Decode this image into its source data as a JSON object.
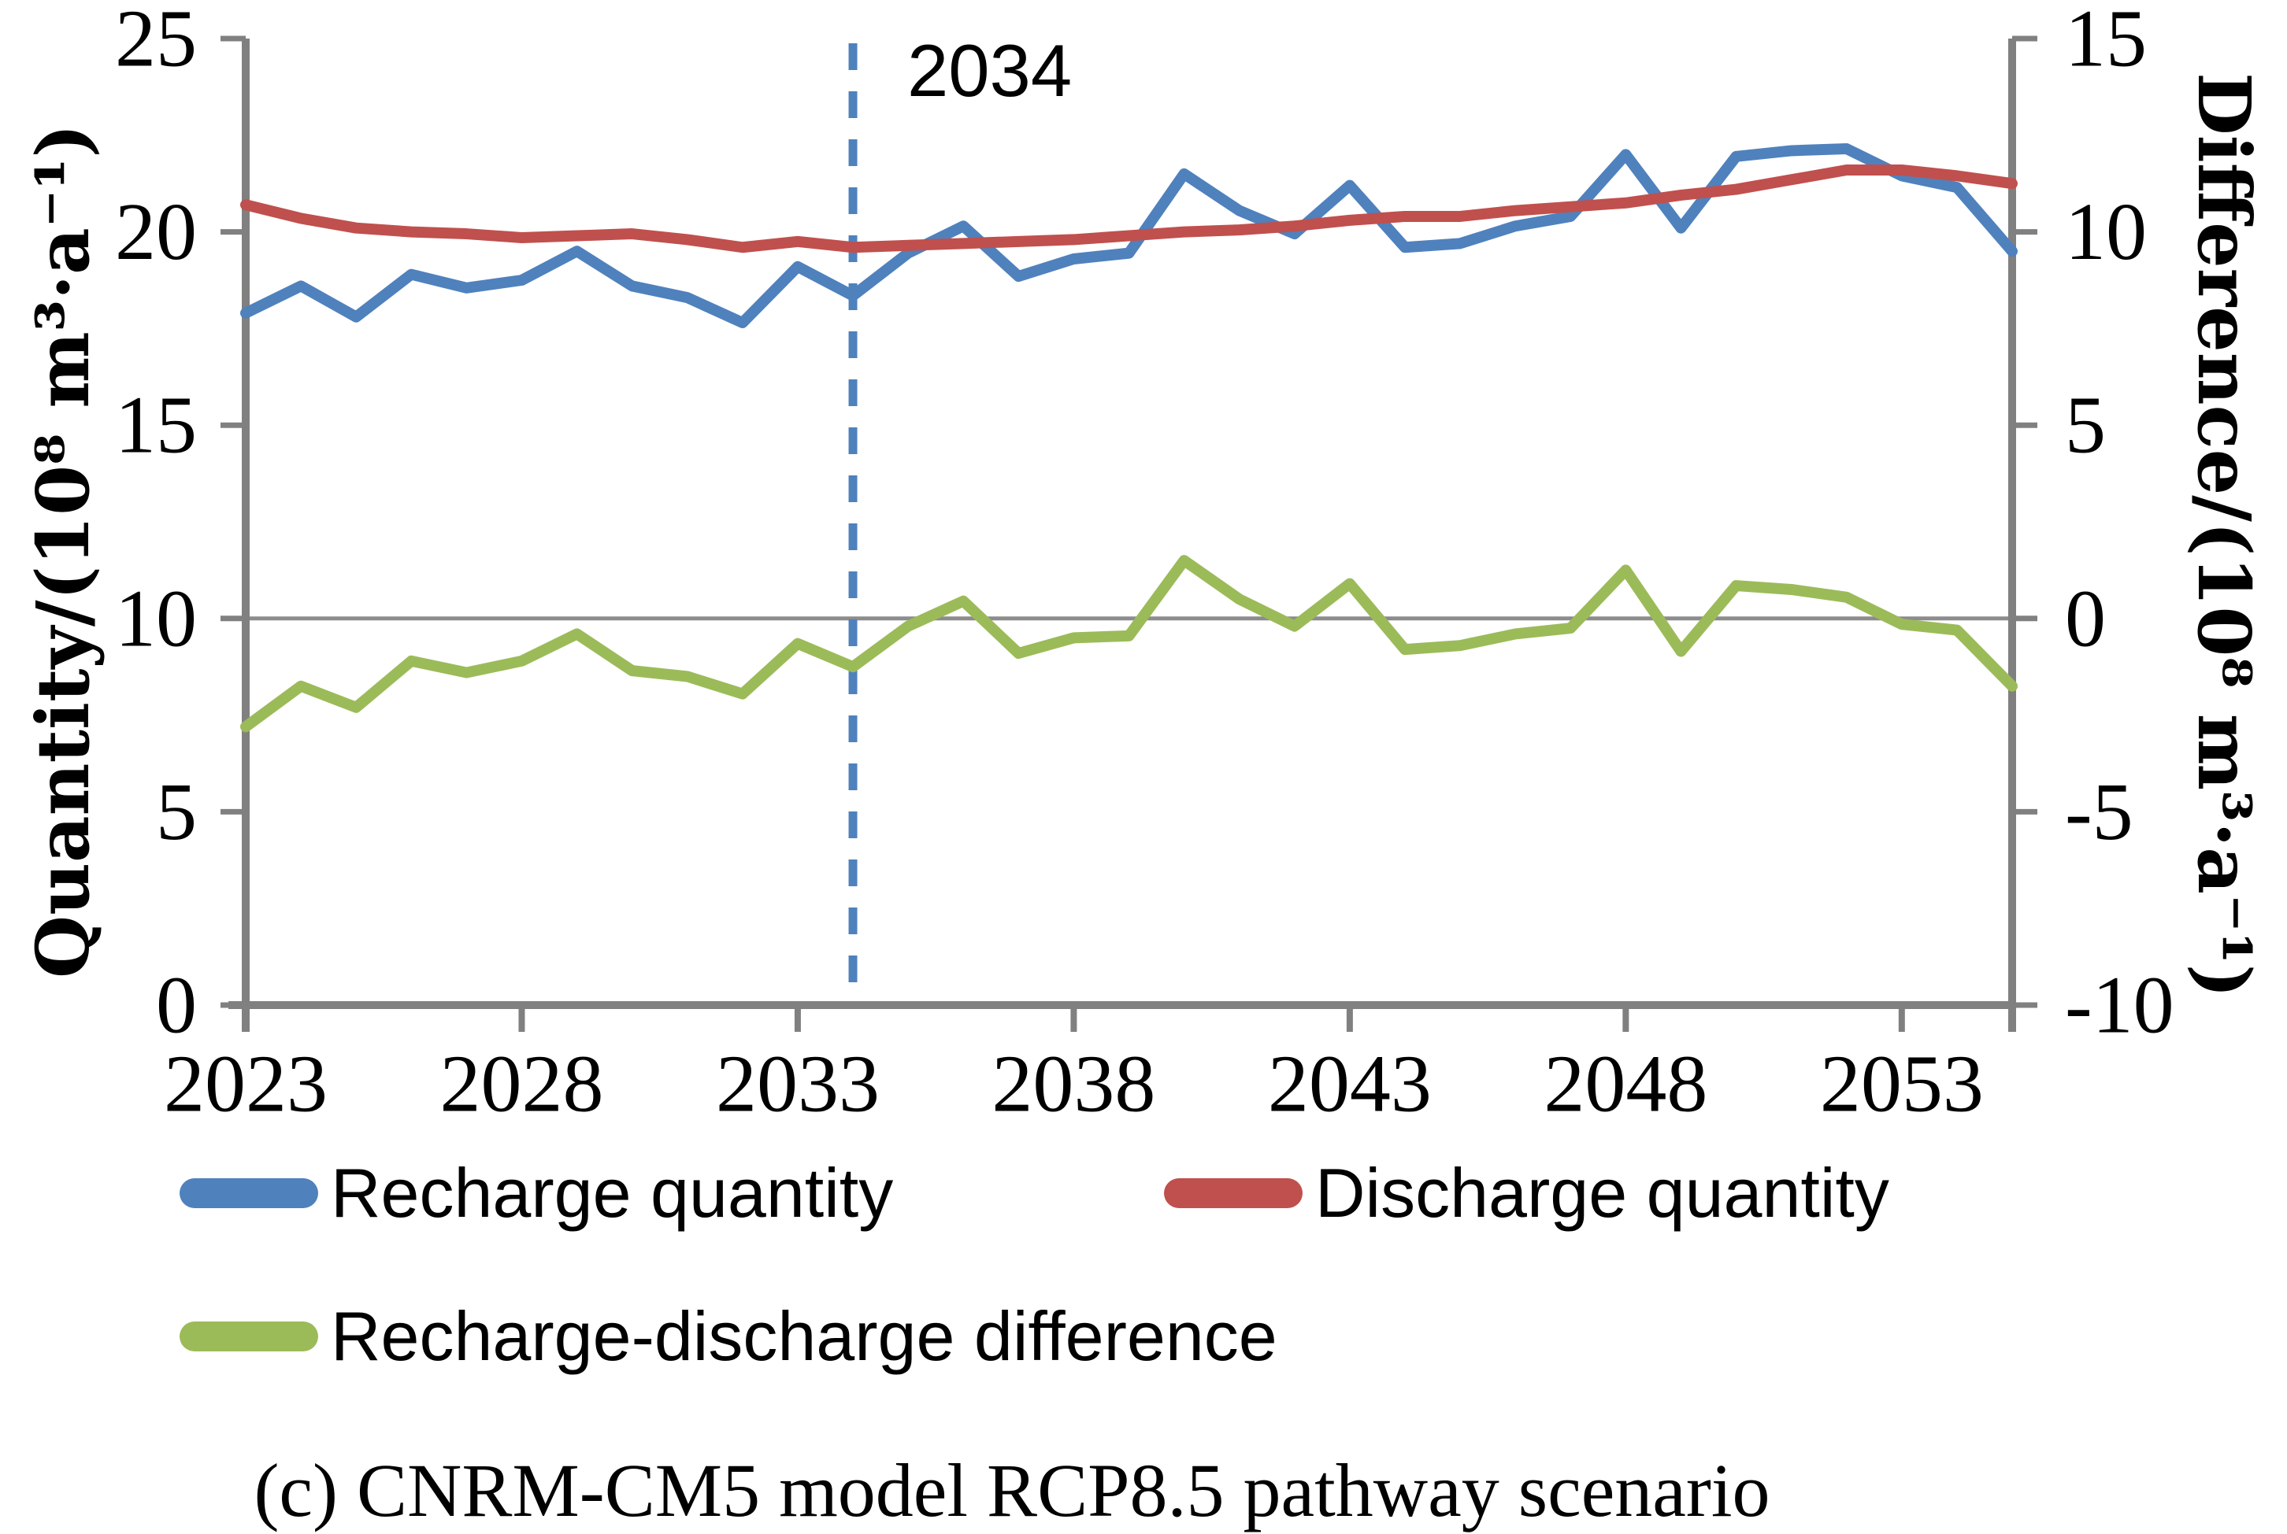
{
  "chart_data": {
    "type": "line",
    "x": [
      2023,
      2024,
      2025,
      2026,
      2027,
      2028,
      2029,
      2030,
      2031,
      2032,
      2033,
      2034,
      2035,
      2036,
      2037,
      2038,
      2039,
      2040,
      2041,
      2042,
      2043,
      2044,
      2045,
      2046,
      2047,
      2048,
      2049,
      2050,
      2051,
      2052,
      2053,
      2054,
      2055
    ],
    "x_tick_years": [
      2023,
      2028,
      2033,
      2038,
      2043,
      2048,
      2053
    ],
    "left_axis": {
      "label": "Quantity/(10⁸ m³·a⁻¹)",
      "ticks": [
        0,
        5,
        10,
        15,
        20,
        25
      ],
      "range": [
        0,
        25
      ]
    },
    "right_axis": {
      "label": "Difference/(10⁸ m³·a⁻¹)",
      "ticks": [
        -10,
        -5,
        0,
        5,
        10,
        15
      ],
      "range": [
        -10,
        15
      ]
    },
    "grid": "single horizontal gridline at right-axis 0",
    "gridline_right_value": 0,
    "axis_color": "#808080",
    "gridline_color": "#8C8C8C",
    "series": [
      {
        "name": "Recharge quantity",
        "color": "#4F81BD",
        "axis": "left",
        "values": [
          17.9,
          18.6,
          17.8,
          18.9,
          18.55,
          18.75,
          19.5,
          18.6,
          18.3,
          17.65,
          19.1,
          18.35,
          19.45,
          20.15,
          18.85,
          19.3,
          19.45,
          21.5,
          20.55,
          19.95,
          21.2,
          19.6,
          19.7,
          20.15,
          20.4,
          22.0,
          20.1,
          21.95,
          22.1,
          22.15,
          21.45,
          21.15,
          19.5
        ]
      },
      {
        "name": "Discharge quantity",
        "color": "#C0504D",
        "axis": "left",
        "values": [
          20.7,
          20.35,
          20.1,
          20.0,
          19.95,
          19.85,
          19.9,
          19.95,
          19.8,
          19.6,
          19.75,
          19.6,
          19.65,
          19.7,
          19.75,
          19.8,
          19.9,
          20.0,
          20.05,
          20.15,
          20.3,
          20.4,
          20.4,
          20.55,
          20.65,
          20.75,
          20.95,
          21.1,
          21.35,
          21.6,
          21.6,
          21.45,
          21.25
        ]
      },
      {
        "name": "Recharge-discharge difference",
        "color": "#9BBB59",
        "axis": "right",
        "values": [
          -2.8,
          -1.75,
          -2.3,
          -1.1,
          -1.4,
          -1.1,
          -0.4,
          -1.35,
          -1.5,
          -1.95,
          -0.65,
          -1.25,
          -0.2,
          0.45,
          -0.9,
          -0.5,
          -0.45,
          1.5,
          0.5,
          -0.2,
          0.9,
          -0.8,
          -0.7,
          -0.4,
          -0.25,
          1.25,
          -0.85,
          0.85,
          0.75,
          0.55,
          -0.15,
          -0.3,
          -1.75
        ]
      }
    ],
    "vline": {
      "x": 2034,
      "label": "2034",
      "color": "#4F81BD",
      "style": "dashed"
    },
    "legend_position": "bottom"
  },
  "caption": "(c) CNRM-CM5 model RCP8.5 pathway scenario"
}
